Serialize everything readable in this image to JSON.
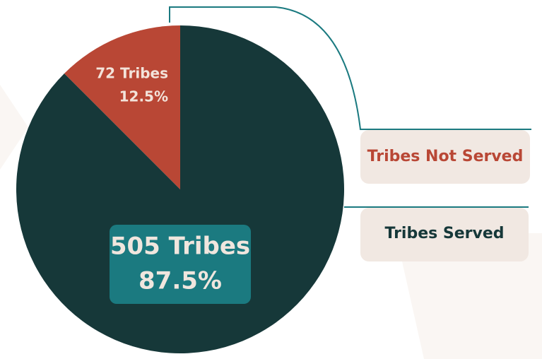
{
  "chart_data": {
    "type": "pie",
    "categories": [
      "Tribes Not Served",
      "Tribes Served"
    ],
    "values": [
      12.5,
      87.5
    ],
    "value_labels": [
      "12.5%",
      "87.5%"
    ],
    "count_labels": [
      "72 Tribes",
      "505 Tribes"
    ],
    "colors": [
      "#b94735",
      "#163839"
    ]
  }
}
